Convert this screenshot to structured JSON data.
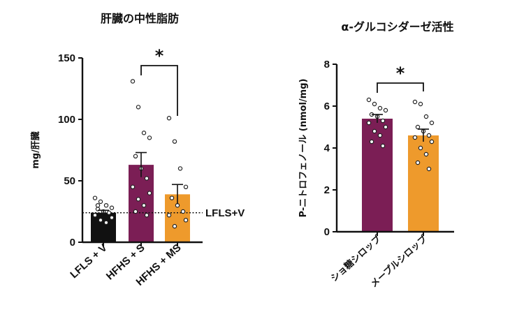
{
  "chart_data": [
    {
      "type": "bar",
      "title": "肝臓の中性脂肪",
      "ylabel": "mg/肝臓",
      "ylim": [
        0,
        150
      ],
      "yticks": [
        "0",
        "50",
        "100",
        "150"
      ],
      "categories": [
        "LFLS + V",
        "HFHS + S",
        "HFHS + MS"
      ],
      "values": [
        24,
        63,
        39
      ],
      "errors": [
        2,
        10,
        8
      ],
      "colors": [
        "#111111",
        "#7b1e55",
        "#ee9a2c"
      ],
      "points": [
        [
          36,
          33,
          30,
          28,
          27,
          25,
          24,
          22,
          20,
          18,
          16,
          30
        ],
        [
          131,
          110,
          89,
          85,
          70,
          60,
          52,
          45,
          40,
          35,
          30,
          25,
          22
        ],
        [
          101,
          82,
          60,
          45,
          36,
          30,
          25,
          22,
          18,
          13
        ]
      ],
      "reference_line": {
        "value": 24,
        "label": "LFLS+V"
      },
      "significance": {
        "between": [
          1,
          2
        ],
        "label": "*"
      }
    },
    {
      "type": "bar",
      "title": "α-グルコシダーゼ活性",
      "ylabel": "P-ニトロフェノール (nmol/mg)",
      "ylim": [
        0,
        8
      ],
      "yticks": [
        "0",
        "2",
        "4",
        "6",
        "8"
      ],
      "categories": [
        "ショ糖シロップ",
        "メープルシロップ"
      ],
      "values": [
        5.4,
        4.6
      ],
      "errors": [
        0.2,
        0.3
      ],
      "colors": [
        "#7b1e55",
        "#ee9a2c"
      ],
      "points": [
        [
          6.3,
          6.1,
          5.9,
          5.8,
          5.6,
          5.5,
          5.3,
          5.2,
          5.0,
          4.8,
          4.6,
          4.3,
          4.1
        ],
        [
          6.2,
          6.1,
          5.5,
          5.2,
          5.0,
          4.8,
          4.6,
          4.5,
          4.3,
          4.0,
          3.7,
          3.3,
          3.0
        ]
      ],
      "significance": {
        "between": [
          0,
          1
        ],
        "label": "*"
      }
    }
  ]
}
